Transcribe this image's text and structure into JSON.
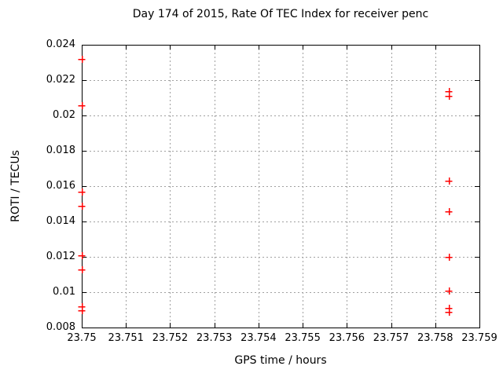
{
  "chart_data": {
    "type": "scatter",
    "title": "Day 174 of 2015, Rate Of TEC Index for receiver penc",
    "xlabel": "GPS time / hours",
    "ylabel": "ROTI / TECUs",
    "xlim": [
      23.75,
      23.759
    ],
    "ylim": [
      0.008,
      0.024
    ],
    "xtick_values": [
      23.75,
      23.751,
      23.752,
      23.753,
      23.754,
      23.755,
      23.756,
      23.757,
      23.758,
      23.759
    ],
    "xtick_labels": [
      "23.75",
      "23.751",
      "23.752",
      "23.753",
      "23.754",
      "23.755",
      "23.756",
      "23.757",
      "23.758",
      "23.759"
    ],
    "ytick_values": [
      0.008,
      0.01,
      0.012,
      0.014,
      0.016,
      0.018,
      0.02,
      0.022,
      0.024
    ],
    "ytick_labels": [
      "0.008",
      "0.01",
      "0.012",
      "0.014",
      "0.016",
      "0.018",
      "0.02",
      "0.022",
      "0.024"
    ],
    "grid": true,
    "legend": "none",
    "marker": "plus",
    "marker_color": "#ff0000",
    "grid_color": "#a0a0a0",
    "border_color": "#000000",
    "background": "#ffffff",
    "series": [
      {
        "name": "ROTI",
        "points": [
          [
            23.75,
            0.0232
          ],
          [
            23.75,
            0.0206
          ],
          [
            23.75,
            0.0157
          ],
          [
            23.75,
            0.0149
          ],
          [
            23.75,
            0.0121
          ],
          [
            23.75,
            0.0113
          ],
          [
            23.75,
            0.0092
          ],
          [
            23.75,
            0.009
          ],
          [
            23.7583,
            0.0214
          ],
          [
            23.7583,
            0.0211
          ],
          [
            23.7583,
            0.0163
          ],
          [
            23.7583,
            0.0146
          ],
          [
            23.7583,
            0.012
          ],
          [
            23.7583,
            0.0101
          ],
          [
            23.7583,
            0.0091
          ],
          [
            23.7583,
            0.0089
          ]
        ]
      }
    ]
  }
}
